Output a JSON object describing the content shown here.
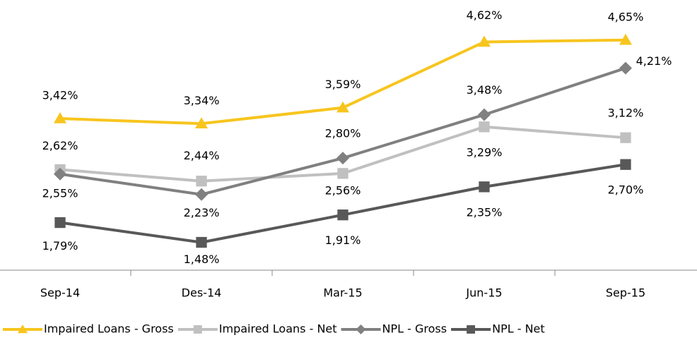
{
  "chart_data": {
    "type": "line",
    "categories": [
      "Sep-14",
      "Des-14",
      "Mar-15",
      "Jun-15",
      "Sep-15"
    ],
    "series": [
      {
        "name": "Impaired Loans - Gross",
        "color": "#f7c51e",
        "marker": "triangle",
        "values": [
          3.42,
          3.34,
          3.59,
          4.62,
          4.65
        ],
        "value_labels": [
          "3,42%",
          "3,34%",
          "3,59%",
          "4,62%",
          "4,65%"
        ]
      },
      {
        "name": "Impaired Loans - Net",
        "color": "#c0c0c0",
        "marker": "square",
        "values": [
          2.62,
          2.44,
          2.56,
          3.29,
          3.12
        ],
        "value_labels": [
          "2,62%",
          "2,44%",
          "2,56%",
          "3,29%",
          "3,12%"
        ]
      },
      {
        "name": "NPL - Gross",
        "color": "#808080",
        "marker": "diamond",
        "values": [
          2.55,
          2.23,
          2.8,
          3.48,
          4.21
        ],
        "value_labels": [
          "2,55%",
          "2,23%",
          "2,80%",
          "3,48%",
          "4,21%"
        ]
      },
      {
        "name": "NPL - Net",
        "color": "#585858",
        "marker": "square",
        "values": [
          1.79,
          1.48,
          1.91,
          2.35,
          2.7
        ],
        "value_labels": [
          "1,79%",
          "1,48%",
          "1,91%",
          "2,35%",
          "2,70%"
        ]
      }
    ],
    "ylim": [
      1,
      5.2
    ],
    "grid": false,
    "legend": "bottom"
  }
}
